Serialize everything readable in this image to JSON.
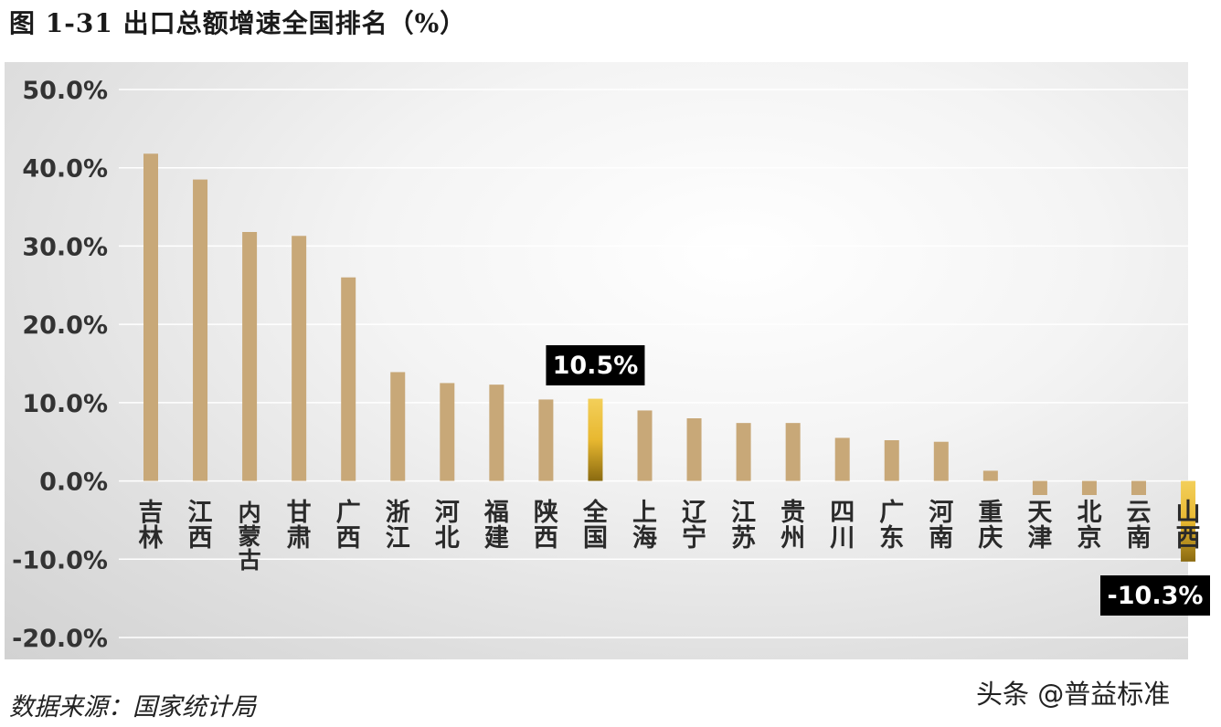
{
  "title": "图 1-31  出口总额增速全国排名（%）",
  "source": "数据来源：国家统计局",
  "watermark": "头条 @普益标准",
  "chart_data": {
    "type": "bar",
    "title": "图 1-31  出口总额增速全国排名（%）",
    "xlabel": "",
    "ylabel": "",
    "ylim": [
      -20,
      50
    ],
    "yticks": [
      50,
      40,
      30,
      20,
      10,
      0,
      -10,
      -20
    ],
    "ytick_labels": [
      "50.0%",
      "40.0%",
      "30.0%",
      "20.0%",
      "10.0%",
      "0.0%",
      "-10.0%",
      "-20.0%"
    ],
    "grid": true,
    "categories": [
      "吉林",
      "江西",
      "内蒙古",
      "甘肃",
      "广西",
      "浙江",
      "河北",
      "福建",
      "陕西",
      "全国",
      "上海",
      "辽宁",
      "江苏",
      "贵州",
      "四川",
      "广东",
      "河南",
      "重庆",
      "天津",
      "北京",
      "云南",
      "山西"
    ],
    "values": [
      41.8,
      38.5,
      31.8,
      31.3,
      26.0,
      13.9,
      12.5,
      12.3,
      10.4,
      10.5,
      9.0,
      8.0,
      7.4,
      7.4,
      5.5,
      5.2,
      5.0,
      1.3,
      -1.8,
      -1.8,
      -1.8,
      -10.3
    ],
    "highlight": [
      "全国",
      "山西"
    ],
    "annotations": [
      {
        "category": "全国",
        "text": "10.5%"
      },
      {
        "category": "山西",
        "text": "-10.3%"
      }
    ],
    "colors": {
      "bar": "#c8a878",
      "highlight_top": "#f3cf5a",
      "highlight_bottom": "#8a6a10",
      "label_bg": "#000000",
      "label_fg": "#ffffff",
      "grid": "#ffffff",
      "tick": "#333333"
    }
  }
}
